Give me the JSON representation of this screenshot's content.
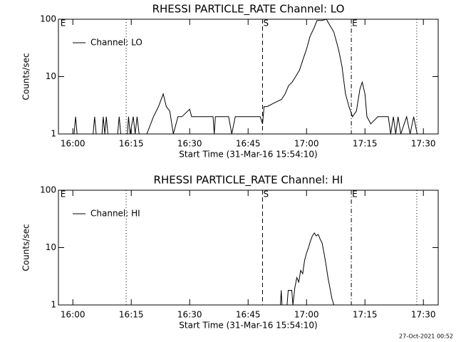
{
  "chart_data": [
    {
      "type": "line",
      "title": "RHESSI PARTICLE_RATE Channel: LO",
      "xlabel": "Start Time (31-Mar-16 15:54:10)",
      "ylabel": "Counts/sec",
      "x": [
        -3.5,
        0.3,
        0.7,
        1.1,
        5.2,
        5.6,
        6,
        7.5,
        7.8,
        8.2,
        8.6,
        9,
        11.5,
        11.9,
        12.3,
        14,
        14.3,
        14.7,
        15.5,
        16,
        16.5,
        17,
        19,
        20.7,
        22,
        23.2,
        24,
        24.9,
        25.8,
        27,
        28,
        30,
        30.5,
        31,
        36,
        36.3,
        36.6,
        40,
        40.8,
        41.7,
        48.1,
        48.7,
        49.1,
        49.9,
        51.8,
        53.6,
        54.5,
        55.4,
        56.3,
        57.2,
        58.2,
        59.1,
        60,
        60.9,
        61.9,
        62.7,
        64,
        65.1,
        65.9,
        67,
        68.2,
        69.1,
        70,
        70.9,
        71.8,
        72.8,
        73.7,
        74.3,
        75,
        75.5,
        76.5,
        78.3,
        81,
        81.6,
        82.3,
        82.9,
        83.5,
        84.2,
        85.7,
        86.6,
        87.5,
        88.4
      ],
      "series": [
        {
          "name": "Channel: LO",
          "color": "#000000",
          "values": [
            1,
            1,
            2,
            1,
            1,
            2,
            1,
            1,
            2,
            1,
            2,
            1,
            1,
            2,
            1,
            1,
            2,
            1,
            2,
            1,
            2,
            1,
            1,
            2,
            3,
            5,
            3,
            2.5,
            1,
            2,
            2,
            2.7,
            2,
            2,
            2,
            1,
            2,
            2,
            1,
            2,
            2,
            1.5,
            3,
            3,
            3.5,
            4,
            5,
            7,
            8,
            10,
            13,
            20,
            30,
            50,
            70,
            95,
            95,
            100,
            80,
            60,
            30,
            15,
            5,
            3,
            2,
            2.5,
            6,
            8,
            5,
            2,
            1.5,
            2,
            2,
            1,
            2,
            1,
            2,
            1,
            2,
            1,
            2,
            1
          ]
        }
      ],
      "xlim": [
        -3.7,
        93.8
      ],
      "xticks": [
        {
          "value": 0,
          "label": "16:00"
        },
        {
          "value": 15,
          "label": "16:15"
        },
        {
          "value": 30,
          "label": "16:30"
        },
        {
          "value": 45,
          "label": "16:45"
        },
        {
          "value": 60,
          "label": "17:00"
        },
        {
          "value": 75,
          "label": "17:15"
        },
        {
          "value": 90,
          "label": "17:30"
        }
      ],
      "ylim": [
        1,
        100
      ],
      "yticks": [
        1,
        10,
        100
      ],
      "log_y": true,
      "legend": "upper left",
      "vlines": [
        {
          "x": 13.7,
          "style": "dotted"
        },
        {
          "x": 48.7,
          "style": "dashed",
          "label": "S"
        },
        {
          "x": 71.5,
          "style": "dashdot",
          "label": "E"
        },
        {
          "x": 88.3,
          "style": "dotted"
        }
      ],
      "annotations": [
        {
          "text": "E",
          "x": -3.2
        }
      ]
    },
    {
      "type": "line",
      "title": "RHESSI PARTICLE_RATE Channel: HI",
      "xlabel": "Start Time (31-Mar-16 15:54:10)",
      "ylabel": "Counts/sec",
      "x": [
        53.3,
        53.5,
        53.7,
        55,
        55.3,
        56.2,
        56.5,
        57,
        57.5,
        58,
        58.5,
        59,
        59.5,
        60,
        60.5,
        61,
        61.5,
        62,
        62.5,
        63,
        63.5,
        64,
        64.5,
        65,
        65.5,
        66,
        66.5,
        67
      ],
      "series": [
        {
          "name": "Channel: HI",
          "color": "#000000",
          "values": [
            1,
            1.8,
            1,
            1,
            1.8,
            1.8,
            1,
            2,
            3,
            2.5,
            4,
            3.5,
            6,
            8,
            10,
            13,
            16,
            18,
            16,
            17,
            14,
            12,
            8,
            5,
            3,
            2,
            1.3,
            1
          ]
        }
      ],
      "xlim": [
        -3.7,
        93.8
      ],
      "xticks": [
        {
          "value": 0,
          "label": "16:00"
        },
        {
          "value": 15,
          "label": "16:15"
        },
        {
          "value": 30,
          "label": "16:30"
        },
        {
          "value": 45,
          "label": "16:45"
        },
        {
          "value": 60,
          "label": "17:00"
        },
        {
          "value": 75,
          "label": "17:15"
        },
        {
          "value": 90,
          "label": "17:30"
        }
      ],
      "ylim": [
        1,
        100
      ],
      "yticks": [
        1,
        10,
        100
      ],
      "log_y": true,
      "legend": "upper left",
      "vlines": [
        {
          "x": 13.7,
          "style": "dotted"
        },
        {
          "x": 48.7,
          "style": "dashed",
          "label": "S"
        },
        {
          "x": 71.5,
          "style": "dashdot",
          "label": "E"
        },
        {
          "x": 88.3,
          "style": "dotted"
        }
      ],
      "annotations": [
        {
          "text": "E",
          "x": -3.2
        }
      ]
    }
  ],
  "footer": "27-Oct-2021 00:52"
}
